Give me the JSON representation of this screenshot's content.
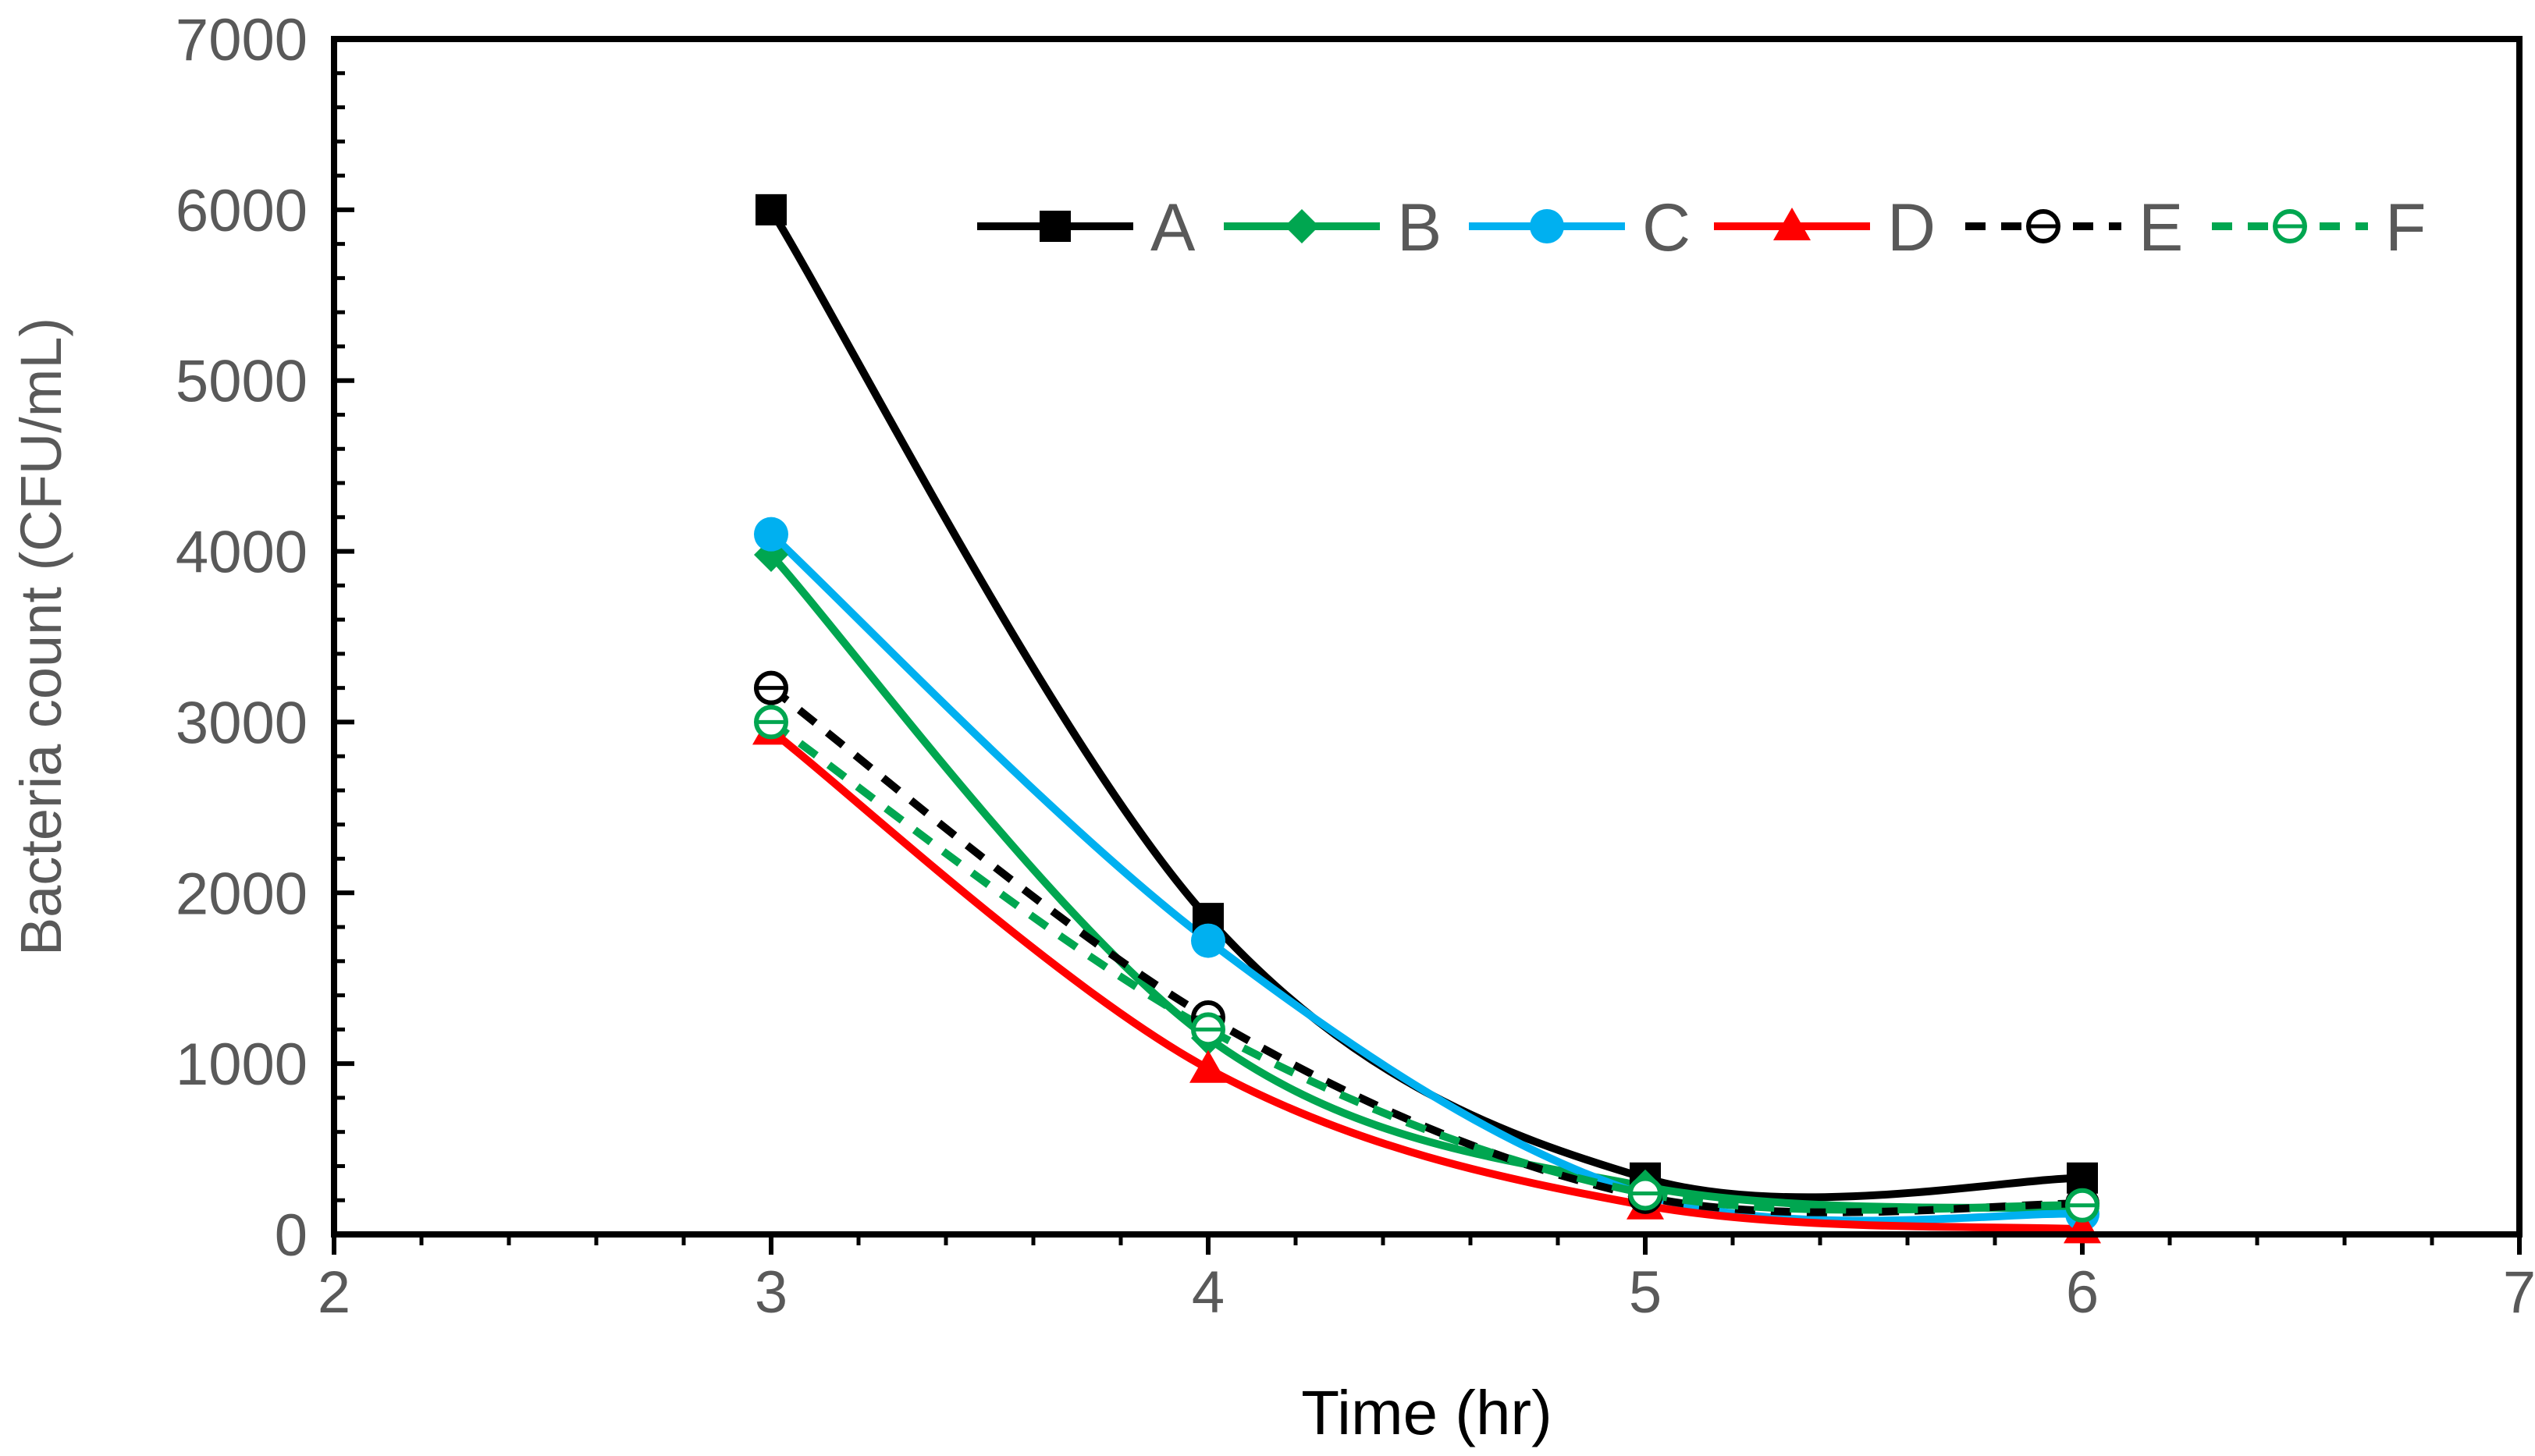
{
  "chart_data": {
    "type": "line",
    "title": "",
    "xlabel": "Time (hr)",
    "ylabel": "Bacteria count (CFU/mL)",
    "xlim": [
      2,
      7
    ],
    "ylim": [
      0,
      7000
    ],
    "x_ticks": [
      2,
      3,
      4,
      5,
      6,
      7
    ],
    "y_ticks": [
      0,
      1000,
      2000,
      3000,
      4000,
      5000,
      6000,
      7000
    ],
    "x_tick_labels": [
      "2",
      "3",
      "4",
      "5",
      "6",
      "7"
    ],
    "y_tick_labels": [
      "0",
      "1000",
      "2000",
      "3000",
      "4000",
      "5000",
      "6000",
      "7000"
    ],
    "x_minor_step": 0.2,
    "y_minor_step": 200,
    "grid": false,
    "legend_position": "top-right",
    "smooth": true,
    "x": [
      3,
      4,
      5,
      6
    ],
    "series": [
      {
        "name": "A",
        "values": [
          6000,
          1850,
          330,
          330
        ],
        "color": "#000000",
        "marker": "square",
        "dashed": false
      },
      {
        "name": "B",
        "values": [
          3980,
          1150,
          280,
          150
        ],
        "color": "#00A650",
        "marker": "diamond",
        "dashed": false
      },
      {
        "name": "C",
        "values": [
          4100,
          1720,
          230,
          120
        ],
        "color": "#00B0F0",
        "marker": "circle",
        "dashed": false
      },
      {
        "name": "D",
        "values": [
          2950,
          970,
          170,
          30
        ],
        "color": "#FF0000",
        "marker": "triangle",
        "dashed": false
      },
      {
        "name": "E",
        "values": [
          3200,
          1270,
          220,
          180
        ],
        "color": "#000000",
        "marker": "open-circle",
        "dashed": true
      },
      {
        "name": "F",
        "values": [
          3000,
          1200,
          240,
          170
        ],
        "color": "#00A650",
        "marker": "open-circle",
        "dashed": true
      }
    ]
  }
}
